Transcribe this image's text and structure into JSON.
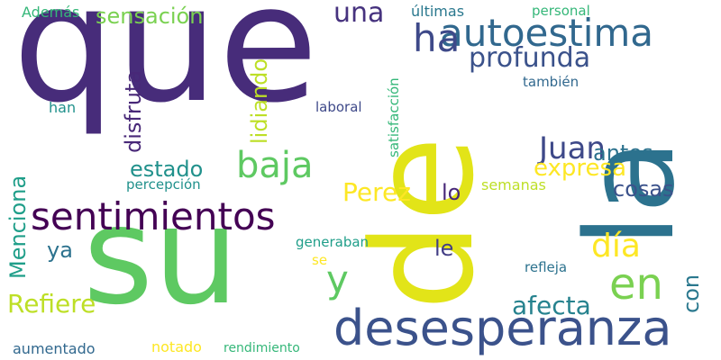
{
  "words": [
    {
      "text": "que",
      "color": "#472c7a",
      "orientation": "horizontal"
    },
    {
      "text": "su",
      "color": "#5ec962",
      "orientation": "horizontal"
    },
    {
      "text": "de",
      "color": "#e2e418",
      "orientation": "vertical"
    },
    {
      "text": "la",
      "color": "#2c728e",
      "orientation": "vertical"
    },
    {
      "text": "desesperanza",
      "color": "#3b528b",
      "orientation": "horizontal"
    },
    {
      "text": "sentimientos",
      "color": "#440154",
      "orientation": "horizontal"
    },
    {
      "text": "autoestima",
      "color": "#31688e",
      "orientation": "horizontal"
    },
    {
      "text": "ha",
      "color": "#3e4989",
      "orientation": "horizontal"
    },
    {
      "text": "baja",
      "color": "#5ec962",
      "orientation": "horizontal"
    },
    {
      "text": "en",
      "color": "#7ad151",
      "orientation": "horizontal"
    },
    {
      "text": "y",
      "color": "#5ec962",
      "orientation": "horizontal"
    },
    {
      "text": "día",
      "color": "#fde725",
      "orientation": "horizontal"
    },
    {
      "text": "Juan",
      "color": "#3e4989",
      "orientation": "horizontal"
    },
    {
      "text": "Perez",
      "color": "#fde725",
      "orientation": "horizontal"
    },
    {
      "text": "profunda",
      "color": "#3b528b",
      "orientation": "horizontal"
    },
    {
      "text": "una",
      "color": "#46327e",
      "orientation": "horizontal"
    },
    {
      "text": "sensación",
      "color": "#7ad151",
      "orientation": "horizontal"
    },
    {
      "text": "Refiere",
      "color": "#bddf26",
      "orientation": "horizontal"
    },
    {
      "text": "afecta",
      "color": "#26828e",
      "orientation": "horizontal"
    },
    {
      "text": "expresa",
      "color": "#fde725",
      "orientation": "horizontal"
    },
    {
      "text": "estado",
      "color": "#21918c",
      "orientation": "horizontal"
    },
    {
      "text": "cosas",
      "color": "#3b528b",
      "orientation": "horizontal"
    },
    {
      "text": "antes",
      "color": "#2c728e",
      "orientation": "horizontal"
    },
    {
      "text": "disfruta",
      "color": "#482878",
      "orientation": "vertical"
    },
    {
      "text": "lidiando",
      "color": "#bddf26",
      "orientation": "vertical"
    },
    {
      "text": "Menciona",
      "color": "#1f9e89",
      "orientation": "vertical"
    },
    {
      "text": "con",
      "color": "#2a788e",
      "orientation": "vertical"
    },
    {
      "text": "lo",
      "color": "#482878",
      "orientation": "horizontal"
    },
    {
      "text": "le",
      "color": "#433e85",
      "orientation": "horizontal"
    },
    {
      "text": "ya",
      "color": "#2c728e",
      "orientation": "horizontal"
    },
    {
      "text": "Además",
      "color": "#35b779",
      "orientation": "horizontal"
    },
    {
      "text": "últimas",
      "color": "#2a788e",
      "orientation": "horizontal"
    },
    {
      "text": "personal",
      "color": "#35b779",
      "orientation": "horizontal"
    },
    {
      "text": "han",
      "color": "#21918c",
      "orientation": "horizontal"
    },
    {
      "text": "laboral",
      "color": "#3e4989",
      "orientation": "horizontal"
    },
    {
      "text": "satisfacción",
      "color": "#35b779",
      "orientation": "vertical"
    },
    {
      "text": "también",
      "color": "#31688e",
      "orientation": "horizontal"
    },
    {
      "text": "percepción",
      "color": "#21918c",
      "orientation": "horizontal"
    },
    {
      "text": "semanas",
      "color": "#bddf26",
      "orientation": "horizontal"
    },
    {
      "text": "generaban",
      "color": "#1f9e89",
      "orientation": "horizontal"
    },
    {
      "text": "se",
      "color": "#fde725",
      "orientation": "horizontal"
    },
    {
      "text": "refleja",
      "color": "#2c728e",
      "orientation": "horizontal"
    },
    {
      "text": "aumentado",
      "color": "#31688e",
      "orientation": "horizontal"
    },
    {
      "text": "notado",
      "color": "#fde725",
      "orientation": "horizontal"
    },
    {
      "text": "rendimiento",
      "color": "#35b779",
      "orientation": "horizontal"
    }
  ]
}
